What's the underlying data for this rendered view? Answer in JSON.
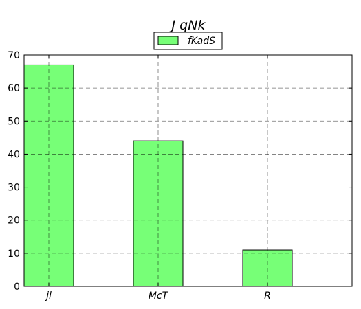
{
  "chart_data": {
    "type": "bar",
    "title": "J qNk",
    "categories": [
      "jl",
      "McT",
      "R"
    ],
    "series": [
      {
        "name": "fKadS",
        "values": [
          67,
          44,
          11
        ],
        "color": "#77ff77"
      }
    ],
    "ylim": [
      0,
      70
    ],
    "yticks": [
      0,
      10,
      20,
      30,
      40,
      50,
      60,
      70
    ],
    "xlabel": "",
    "ylabel": "",
    "grid": true,
    "legend_position": "top-center"
  }
}
